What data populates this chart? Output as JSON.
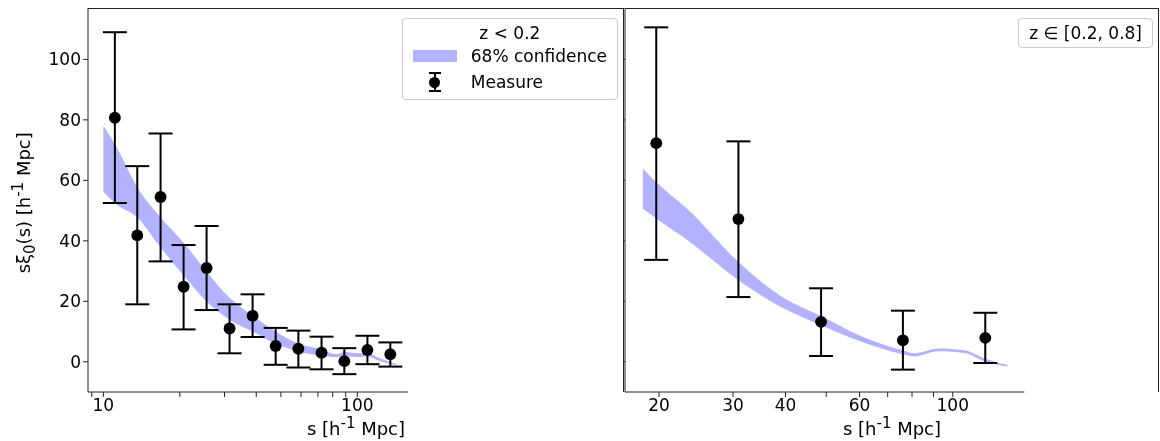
{
  "chart_data": [
    {
      "type": "area",
      "legend_title": "z < 0.2",
      "legend": "top right",
      "log": "x",
      "marker": "circle",
      "xlabel": "s [h$^{-1}$ Mpc]",
      "ylabel": "sξ$_{0}$(s) [h$^{-1}$ Mpc]",
      "xlim": [
        8.7,
        158
      ],
      "xticks": [
        {
          "value": 9,
          "label": null
        },
        10,
        {
          "value": 20,
          "label": null
        },
        {
          "value": 30,
          "label": null
        },
        {
          "value": 40,
          "label": null
        },
        {
          "value": 50,
          "label": null
        },
        {
          "value": 60,
          "label": null
        },
        {
          "value": 70,
          "label": null
        },
        {
          "value": 80,
          "label": null
        },
        {
          "value": 90,
          "label": null
        },
        100
      ],
      "ylim": [
        -10,
        117
      ],
      "yticks": [
        0,
        20,
        40,
        60,
        80,
        100
      ],
      "series": [
        {
          "name": "68% confidence",
          "type": "area",
          "color": "#b2b2ff",
          "x": [
            10,
            11.1,
            13.6,
            16.8,
            20.7,
            25.5,
            31.4,
            38.7,
            47.7,
            58.6,
            72.3,
            83,
            88.9,
            100,
            109.6,
            120,
            143
          ],
          "values": [
            null,
            null,
            null,
            null,
            null,
            null,
            null,
            null,
            null,
            null,
            null,
            null,
            null,
            null,
            null,
            null,
            null
          ],
          "lower": [
            56.3,
            52.4,
            47.7,
            37.8,
            28.5,
            19.9,
            13.9,
            10,
            6,
            3.3,
            2,
            1.5,
            2,
            1.5,
            1.8,
            0.5,
            -1.2
          ],
          "upper": [
            78,
            72,
            57.7,
            47.7,
            39.4,
            29.8,
            21.2,
            15.3,
            10,
            6,
            4,
            2.5,
            3.3,
            2.8,
            3,
            1.5,
            -0.8
          ]
        },
        {
          "name": "Measure",
          "type": "scatter",
          "color": "#000000",
          "x": [
            11.1,
            13.6,
            16.8,
            20.7,
            25.5,
            31.4,
            38.7,
            47.7,
            58.6,
            72.3,
            88.9,
            109.6,
            134.9
          ],
          "values": [
            80.7,
            41.8,
            54.5,
            24.8,
            31,
            11,
            15.2,
            5.2,
            4.3,
            3,
            0.2,
            3.9,
            2.5
          ],
          "errors": [
            [
              52.5,
              109
            ],
            [
              19,
              64.7
            ],
            [
              33.2,
              75.5
            ],
            [
              10.7,
              38.6
            ],
            [
              17.1,
              44.9
            ],
            [
              2.8,
              19
            ],
            [
              8.2,
              22.3
            ],
            [
              -1,
              11.2
            ],
            [
              -1.9,
              10.3
            ],
            [
              -2.5,
              8.3
            ],
            [
              -4.1,
              4.5
            ],
            [
              -0.8,
              8.6
            ],
            [
              -1.6,
              6.4
            ]
          ]
        }
      ]
    },
    {
      "type": "area",
      "legend_title": "z ∈ [0.2, 0.8]",
      "legend": "top right",
      "log": "x",
      "marker": "circle",
      "tick_labels": "x",
      "xlabel": "s [h$^{-1}$ Mpc]",
      "xlim": [
        16.6,
        148
      ],
      "xticks": [
        20,
        30,
        40,
        {
          "value": 50,
          "label": null
        },
        60,
        {
          "value": 70,
          "label": null
        },
        {
          "value": 80,
          "label": null
        },
        {
          "value": 90,
          "label": null
        },
        100
      ],
      "ylim": [
        -10,
        117
      ],
      "yticks": [
        0,
        20,
        40,
        60,
        80,
        100
      ],
      "series": [
        {
          "type": "area",
          "color": "#b2b2ff",
          "x": [
            18.3,
            19.7,
            23.4,
            30.9,
            39,
            48.6,
            60.4,
            76.1,
            80.9,
            92.3,
            106.7,
            119.5,
            134.9
          ],
          "values": [
            null,
            null,
            null,
            null,
            null,
            null,
            null,
            null,
            null,
            null,
            null,
            null,
            null
          ],
          "lower": [
            50.7,
            47.4,
            40.2,
            27,
            18.1,
            12.1,
            6.7,
            2.5,
            1.8,
            3.5,
            2.9,
            0,
            -1.6
          ],
          "upper": [
            63.8,
            59.4,
            50.4,
            33,
            21.7,
            15.1,
            8.5,
            3.7,
            2.8,
            4.4,
            3.8,
            1,
            -1.1
          ]
        },
        {
          "type": "scatter",
          "color": "#000000",
          "x": [
            19.7,
            30.9,
            48.6,
            76.1,
            119.5
          ],
          "values": [
            72.3,
            47.2,
            13.2,
            7.1,
            7.9
          ],
          "errors": [
            [
              33.7,
              110.6
            ],
            [
              21.4,
              72.9
            ],
            [
              1.9,
              24.3
            ],
            [
              -2.6,
              16.9
            ],
            [
              -0.4,
              16.2
            ]
          ]
        }
      ]
    }
  ]
}
